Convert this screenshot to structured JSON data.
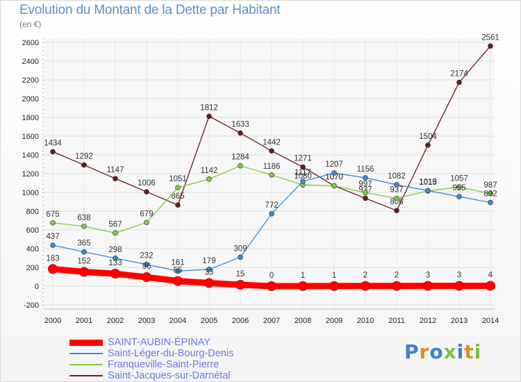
{
  "title": "Evolution du Montant de la Dette par Habitant",
  "unit_label": "(en €)",
  "logo": {
    "text": "Proxiti",
    "colors": [
      "#3a7fd5",
      "#e58a20",
      "#3a7fd5",
      "#7ac23c",
      "#3a7fd5",
      "#e58a20",
      "#7ac23c"
    ]
  },
  "chart_data": {
    "type": "line",
    "title": "Evolution du Montant de la Dette par Habitant",
    "ylabel": "(en €)",
    "xlabel": "",
    "ylim": [
      -200,
      2600
    ],
    "yticks": [
      -200,
      0,
      200,
      400,
      600,
      800,
      1000,
      1200,
      1400,
      1600,
      1800,
      2000,
      2200,
      2400,
      2600
    ],
    "x": [
      "2000",
      "2001",
      "2002",
      "2003",
      "2004",
      "2005",
      "2006",
      "2007",
      "2008",
      "2009",
      "2010",
      "2011",
      "2012",
      "2013",
      "2014"
    ],
    "grid": true,
    "legend_position": "bottom-left",
    "series": [
      {
        "name": "SAINT-AUBIN-ÉPINAY",
        "color": "#ff0000",
        "values": [
          183,
          152,
          133,
          96,
          55,
          33,
          15,
          0,
          1,
          1,
          2,
          2,
          3,
          3,
          4
        ]
      },
      {
        "name": "Saint-Léger-du-Bourg-Denis",
        "color": "#3b8ad0",
        "values": [
          437,
          365,
          298,
          232,
          161,
          179,
          309,
          772,
          1117,
          1207,
          1156,
          1082,
          1019,
          955,
          892
        ]
      },
      {
        "name": "Franqueville-Saint-Pierre",
        "color": "#78cd3c",
        "values": [
          675,
          638,
          567,
          679,
          1051,
          1142,
          1284,
          1186,
          1080,
          1070,
          997,
          937,
          1015,
          1057,
          987
        ]
      },
      {
        "name": "Saint-Jacques-sur-Darnétal",
        "color": "#6a1a1a",
        "values": [
          1434,
          1292,
          1147,
          1006,
          865,
          1812,
          1633,
          1442,
          1271,
          1070,
          937,
          806,
          1504,
          2174,
          2561
        ]
      }
    ]
  }
}
